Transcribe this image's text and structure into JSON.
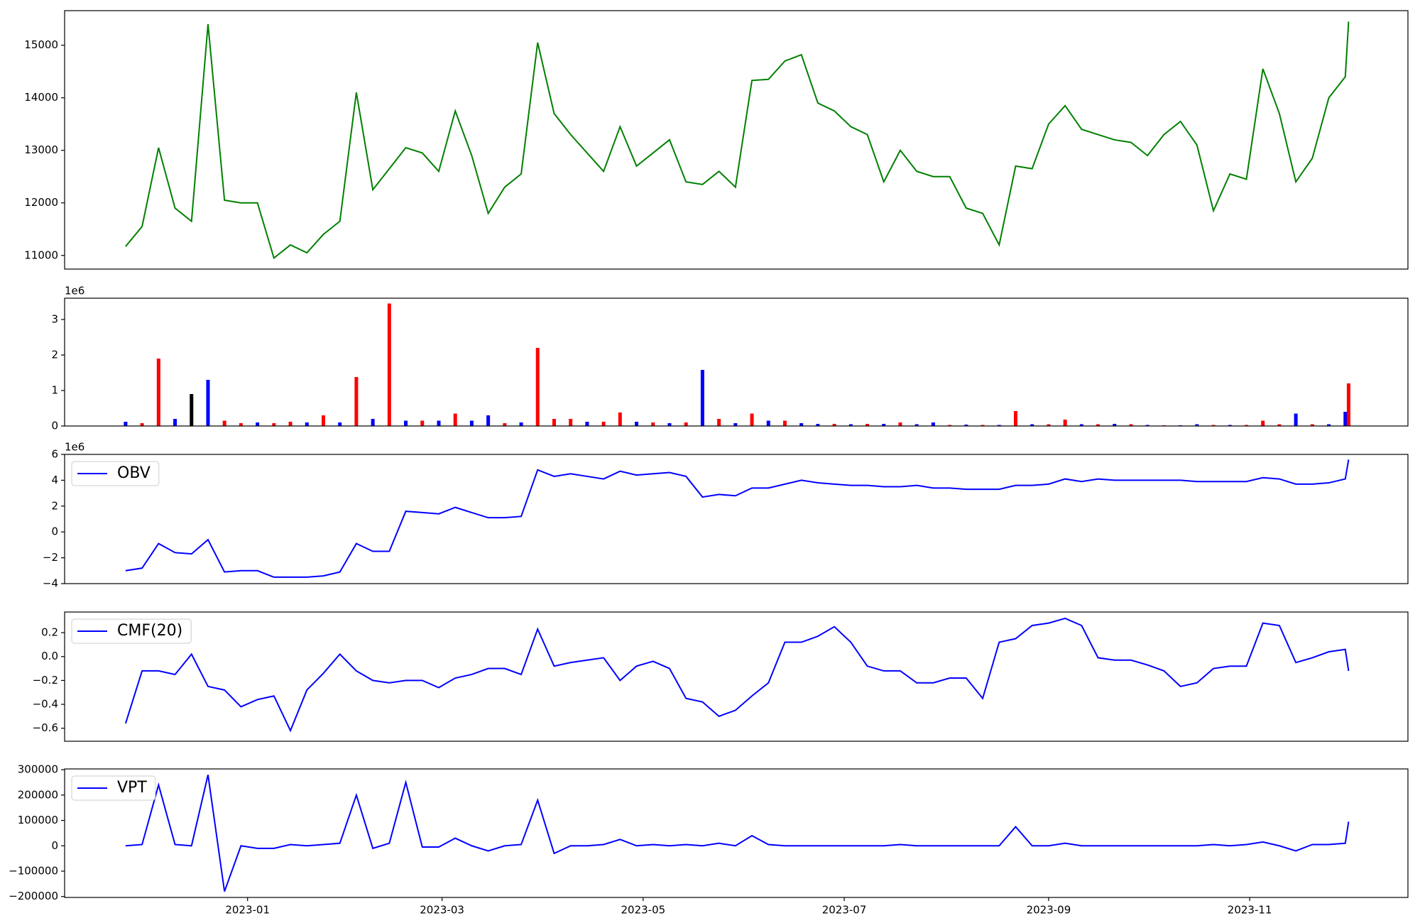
{
  "chart_data": [
    {
      "type": "line",
      "color": "#008000",
      "x": [
        -37,
        -32,
        -27,
        -22,
        -17,
        -12,
        -7,
        -2,
        3,
        8,
        13,
        18,
        23,
        28,
        33,
        38,
        43,
        48,
        53,
        58,
        63,
        68,
        73,
        78,
        83,
        88,
        93,
        98,
        103,
        108,
        113,
        118,
        123,
        128,
        133,
        138,
        143,
        148,
        153,
        158,
        163,
        168,
        173,
        178,
        183,
        188,
        193,
        198,
        203,
        208,
        213,
        218,
        223,
        228,
        233,
        238,
        243,
        248,
        253,
        258,
        263,
        268,
        273,
        278,
        283,
        288,
        293,
        298,
        303,
        308,
        313,
        318,
        323,
        328,
        333,
        334
      ],
      "values": [
        11170,
        11550,
        13050,
        11900,
        11650,
        15400,
        12050,
        12000,
        12000,
        10950,
        11200,
        11050,
        11400,
        11650,
        14100,
        12250,
        12650,
        13050,
        12950,
        12600,
        13750,
        12900,
        11800,
        12300,
        12550,
        15050,
        13700,
        13300,
        12950,
        12600,
        13450,
        12700,
        12950,
        13200,
        12400,
        12350,
        12600,
        12300,
        14330,
        14350,
        14700,
        14820,
        13900,
        13750,
        13450,
        13300,
        12400,
        13000,
        12600,
        12500,
        12500,
        11900,
        11800,
        11200,
        12700,
        12650,
        13500,
        13850,
        13400,
        13300,
        13200,
        13150,
        12900,
        13300,
        13550,
        13100,
        11850,
        12550,
        12450,
        14550,
        13700,
        12400,
        12850,
        14000,
        14400,
        15450
      ],
      "xlim": [
        -55.5,
        352
      ],
      "ylim": [
        10740,
        15658
      ],
      "yticks": [
        11000,
        12000,
        13000,
        14000,
        15000
      ]
    },
    {
      "type": "bar",
      "yoffset": "1e6",
      "x": [
        -37,
        -32,
        -27,
        -22,
        -17,
        -12,
        -7,
        -2,
        3,
        8,
        13,
        18,
        23,
        28,
        33,
        38,
        43,
        48,
        53,
        58,
        63,
        68,
        73,
        78,
        83,
        88,
        93,
        98,
        103,
        108,
        113,
        118,
        123,
        128,
        133,
        138,
        143,
        148,
        153,
        158,
        163,
        168,
        173,
        178,
        183,
        188,
        193,
        198,
        203,
        208,
        213,
        218,
        223,
        228,
        233,
        238,
        243,
        248,
        253,
        258,
        263,
        268,
        273,
        278,
        283,
        288,
        293,
        298,
        303,
        308,
        313,
        318,
        323,
        328,
        333,
        334
      ],
      "values": [
        120000,
        80000,
        1900000,
        200000,
        900000,
        1300000,
        150000,
        80000,
        100000,
        80000,
        120000,
        100000,
        300000,
        100000,
        1380000,
        200000,
        3450000,
        150000,
        150000,
        150000,
        350000,
        150000,
        300000,
        80000,
        100000,
        2200000,
        200000,
        200000,
        120000,
        120000,
        380000,
        120000,
        100000,
        80000,
        100000,
        1580000,
        200000,
        80000,
        350000,
        150000,
        150000,
        80000,
        60000,
        60000,
        50000,
        60000,
        60000,
        100000,
        50000,
        100000,
        30000,
        40000,
        30000,
        30000,
        420000,
        50000,
        50000,
        180000,
        50000,
        50000,
        60000,
        50000,
        30000,
        20000,
        20000,
        50000,
        30000,
        30000,
        30000,
        150000,
        50000,
        350000,
        50000,
        50000,
        400000,
        1200000
      ],
      "colors": [
        "blue",
        "red",
        "red",
        "blue",
        "black",
        "blue",
        "red",
        "red",
        "blue",
        "red",
        "red",
        "blue",
        "red",
        "blue",
        "red",
        "blue",
        "red",
        "blue",
        "red",
        "blue",
        "red",
        "blue",
        "blue",
        "red",
        "blue",
        "red",
        "red",
        "red",
        "blue",
        "red",
        "red",
        "blue",
        "red",
        "blue",
        "red",
        "blue",
        "red",
        "blue",
        "red",
        "blue",
        "red",
        "blue",
        "blue",
        "red",
        "blue",
        "red",
        "blue",
        "red",
        "blue",
        "blue",
        "red",
        "blue",
        "red",
        "blue",
        "red",
        "blue",
        "red",
        "red",
        "blue",
        "red",
        "blue",
        "red",
        "blue",
        "red",
        "blue",
        "blue",
        "red",
        "blue",
        "red",
        "red",
        "red",
        "blue",
        "red",
        "blue",
        "blue",
        "red"
      ],
      "xlim": [
        -55.5,
        352
      ],
      "ylim": [
        0,
        3600000
      ],
      "yticks": [
        {
          "value": 0,
          "label": "0"
        },
        {
          "value": 1000000,
          "label": "1"
        },
        {
          "value": 2000000,
          "label": "2"
        },
        {
          "value": 3000000,
          "label": "3"
        }
      ]
    },
    {
      "type": "line",
      "yoffset": "1e6",
      "legend": "upper left",
      "x": [
        -37,
        -32,
        -27,
        -22,
        -17,
        -12,
        -7,
        -2,
        3,
        8,
        13,
        18,
        23,
        28,
        33,
        38,
        43,
        48,
        53,
        58,
        63,
        68,
        73,
        78,
        83,
        88,
        93,
        98,
        103,
        108,
        113,
        118,
        123,
        128,
        133,
        138,
        143,
        148,
        153,
        158,
        163,
        168,
        173,
        178,
        183,
        188,
        193,
        198,
        203,
        208,
        213,
        218,
        223,
        228,
        233,
        238,
        243,
        248,
        253,
        258,
        263,
        268,
        273,
        278,
        283,
        288,
        293,
        298,
        303,
        308,
        313,
        318,
        323,
        328,
        333,
        334
      ],
      "series": [
        {
          "name": "OBV",
          "color": "#0000ff",
          "values": [
            -3000000,
            -2800000,
            -900000,
            -1600000,
            -1700000,
            -600000,
            -3100000,
            -3000000,
            -3000000,
            -3500000,
            -3500000,
            -3500000,
            -3400000,
            -3100000,
            -900000,
            -1500000,
            -1500000,
            1600000,
            1500000,
            1400000,
            1900000,
            1500000,
            1100000,
            1100000,
            1200000,
            4800000,
            4300000,
            4500000,
            4300000,
            4100000,
            4700000,
            4400000,
            4500000,
            4600000,
            4300000,
            2700000,
            2900000,
            2800000,
            3400000,
            3400000,
            3700000,
            4000000,
            3800000,
            3700000,
            3600000,
            3600000,
            3500000,
            3500000,
            3600000,
            3400000,
            3400000,
            3300000,
            3300000,
            3300000,
            3600000,
            3600000,
            3700000,
            4100000,
            3900000,
            4100000,
            4000000,
            4000000,
            4000000,
            4000000,
            4000000,
            3900000,
            3900000,
            3900000,
            3900000,
            4200000,
            4100000,
            3700000,
            3700000,
            3800000,
            4100000,
            5600000
          ]
        }
      ],
      "xlim": [
        -55.5,
        352
      ],
      "ylim": [
        -4000000,
        6000000
      ],
      "yticks": [
        {
          "value": -4000000,
          "label": "−4"
        },
        {
          "value": -2000000,
          "label": "−2"
        },
        {
          "value": 0,
          "label": "0"
        },
        {
          "value": 2000000,
          "label": "2"
        },
        {
          "value": 4000000,
          "label": "4"
        },
        {
          "value": 6000000,
          "label": "6"
        }
      ]
    },
    {
      "type": "line",
      "legend": "upper left",
      "x": [
        -37,
        -32,
        -27,
        -22,
        -17,
        -12,
        -7,
        -2,
        3,
        8,
        13,
        18,
        23,
        28,
        33,
        38,
        43,
        48,
        53,
        58,
        63,
        68,
        73,
        78,
        83,
        88,
        93,
        98,
        103,
        108,
        113,
        118,
        123,
        128,
        133,
        138,
        143,
        148,
        153,
        158,
        163,
        168,
        173,
        178,
        183,
        188,
        193,
        198,
        203,
        208,
        213,
        218,
        223,
        228,
        233,
        238,
        243,
        248,
        253,
        258,
        263,
        268,
        273,
        278,
        283,
        288,
        293,
        298,
        303,
        308,
        313,
        318,
        323,
        328,
        333,
        334
      ],
      "series": [
        {
          "name": "CMF(20)",
          "color": "#0000ff",
          "values": [
            -0.56,
            -0.12,
            -0.12,
            -0.15,
            0.02,
            -0.25,
            -0.28,
            -0.42,
            -0.36,
            -0.33,
            -0.62,
            -0.28,
            -0.14,
            0.02,
            -0.12,
            -0.2,
            -0.22,
            -0.2,
            -0.2,
            -0.26,
            -0.18,
            -0.15,
            -0.1,
            -0.1,
            -0.15,
            0.23,
            -0.08,
            -0.05,
            -0.03,
            -0.01,
            -0.2,
            -0.08,
            -0.04,
            -0.1,
            -0.35,
            -0.38,
            -0.5,
            -0.45,
            -0.33,
            -0.22,
            0.12,
            0.12,
            0.17,
            0.25,
            0.12,
            -0.08,
            -0.12,
            -0.12,
            -0.22,
            -0.22,
            -0.18,
            -0.18,
            -0.35,
            0.12,
            0.15,
            0.26,
            0.28,
            0.32,
            0.26,
            -0.01,
            -0.03,
            -0.03,
            -0.07,
            -0.12,
            -0.25,
            -0.22,
            -0.1,
            -0.08,
            -0.08,
            0.28,
            0.26,
            -0.05,
            -0.01,
            0.04,
            0.06,
            -0.12
          ]
        }
      ],
      "xlim": [
        -55.5,
        352
      ],
      "ylim": [
        -0.709,
        0.373
      ],
      "yticks": [
        {
          "value": -0.6,
          "label": "−0.6"
        },
        {
          "value": -0.4,
          "label": "−0.4"
        },
        {
          "value": -0.2,
          "label": "−0.2"
        },
        {
          "value": 0,
          "label": "0.0"
        },
        {
          "value": 0.2,
          "label": "0.2"
        }
      ]
    },
    {
      "type": "line",
      "legend": "upper left",
      "x": [
        -37,
        -32,
        -27,
        -22,
        -17,
        -12,
        -7,
        -2,
        3,
        8,
        13,
        18,
        23,
        28,
        33,
        38,
        43,
        48,
        53,
        58,
        63,
        68,
        73,
        78,
        83,
        88,
        93,
        98,
        103,
        108,
        113,
        118,
        123,
        128,
        133,
        138,
        143,
        148,
        153,
        158,
        163,
        168,
        173,
        178,
        183,
        188,
        193,
        198,
        203,
        208,
        213,
        218,
        223,
        228,
        233,
        238,
        243,
        248,
        253,
        258,
        263,
        268,
        273,
        278,
        283,
        288,
        293,
        298,
        303,
        308,
        313,
        318,
        323,
        328,
        333,
        334
      ],
      "series": [
        {
          "name": "VPT",
          "color": "#0000ff",
          "values": [
            0,
            5000,
            240000,
            5000,
            0,
            280000,
            -180000,
            0,
            -10000,
            -10000,
            5000,
            0,
            5000,
            10000,
            200000,
            -10000,
            10000,
            250000,
            -5000,
            -5000,
            30000,
            0,
            -20000,
            0,
            5000,
            180000,
            -30000,
            0,
            0,
            5000,
            25000,
            0,
            5000,
            0,
            5000,
            0,
            10000,
            0,
            40000,
            5000,
            0,
            0,
            0,
            0,
            0,
            0,
            0,
            5000,
            0,
            0,
            0,
            0,
            0,
            0,
            75000,
            0,
            0,
            10000,
            0,
            0,
            0,
            0,
            0,
            0,
            0,
            0,
            5000,
            0,
            5000,
            15000,
            0,
            -20000,
            5000,
            5000,
            10000,
            95000
          ]
        }
      ],
      "xlim": [
        -55.5,
        352
      ],
      "ylim": [
        -203600,
        303000
      ],
      "yticks": [
        {
          "value": -200000,
          "label": "−200000"
        },
        {
          "value": -100000,
          "label": "−100000"
        },
        0,
        100000,
        200000,
        300000
      ],
      "xticks": [
        {
          "value": 0,
          "label": "2023-01"
        },
        {
          "value": 59,
          "label": "2023-03"
        },
        {
          "value": 120,
          "label": "2023-05"
        },
        {
          "value": 181,
          "label": "2023-07"
        },
        {
          "value": 243,
          "label": "2023-09"
        },
        {
          "value": 304,
          "label": "2023-11"
        }
      ]
    }
  ]
}
